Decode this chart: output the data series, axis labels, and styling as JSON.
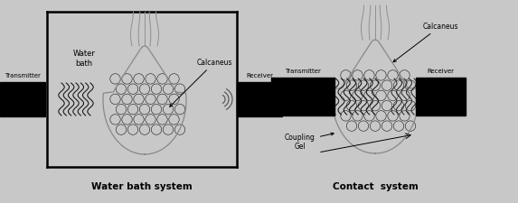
{
  "bg_color": "#c8c8c8",
  "figsize": [
    5.73,
    2.26
  ],
  "dpi": 100,
  "title1": "Water bath system",
  "title2": "Contact  system",
  "label_transmitter": "Transmitter",
  "label_receiver": "Receiver",
  "label_waterbath": "Water\nbath",
  "label_calcaneus1": "Calcaneus",
  "label_calcaneus2": "Calcaneus",
  "label_coupling": "Coupling\nGel"
}
